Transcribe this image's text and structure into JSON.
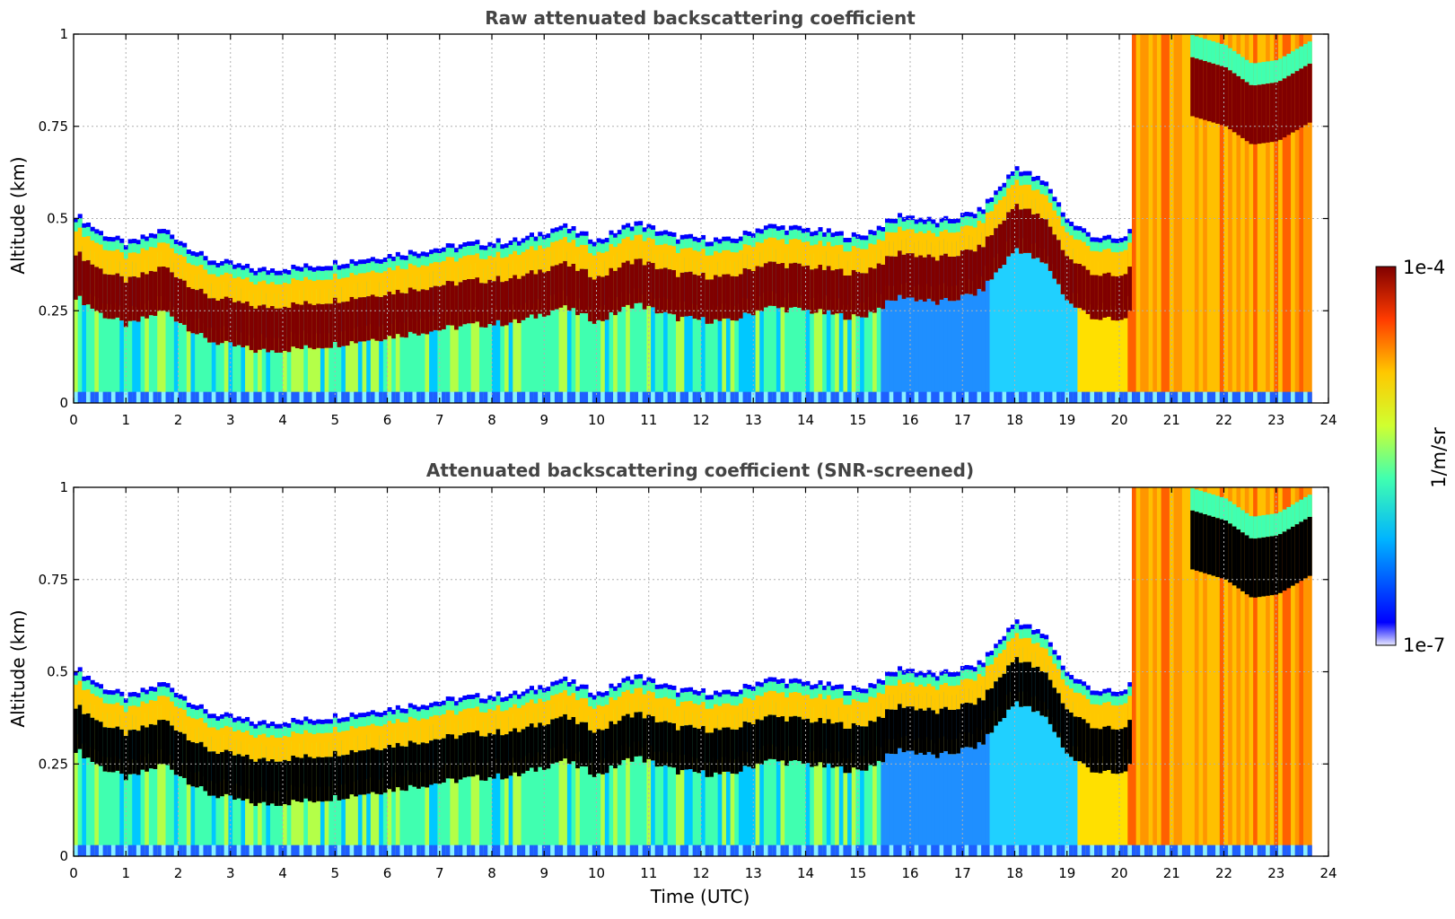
{
  "chart_data": [
    {
      "type": "heatmap",
      "title": "Raw attenuated backscattering coefficient",
      "xlabel": "",
      "ylabel": "Altitude (km)",
      "xlim": [
        0,
        24
      ],
      "ylim": [
        0,
        1
      ],
      "xticks": [
        "0",
        "1",
        "2",
        "3",
        "4",
        "5",
        "6",
        "7",
        "8",
        "9",
        "10",
        "11",
        "12",
        "13",
        "14",
        "15",
        "16",
        "17",
        "18",
        "19",
        "20",
        "21",
        "22",
        "23",
        "24"
      ],
      "yticks": [
        "0",
        "0.25",
        "0.5",
        "0.75",
        "1"
      ],
      "grid": true,
      "saturated_color": "#800000",
      "layer_top": [
        [
          0,
          0.5
        ],
        [
          0.5,
          0.45
        ],
        [
          1,
          0.42
        ],
        [
          1.7,
          0.46
        ],
        [
          2.5,
          0.38
        ],
        [
          3.5,
          0.35
        ],
        [
          4.5,
          0.36
        ],
        [
          5.5,
          0.38
        ],
        [
          6.5,
          0.4
        ],
        [
          7.5,
          0.42
        ],
        [
          8.5,
          0.43
        ],
        [
          9.3,
          0.47
        ],
        [
          10,
          0.43
        ],
        [
          10.7,
          0.48
        ],
        [
          11.5,
          0.44
        ],
        [
          12.5,
          0.43
        ],
        [
          13.2,
          0.47
        ],
        [
          14,
          0.46
        ],
        [
          15,
          0.44
        ],
        [
          15.8,
          0.5
        ],
        [
          16.5,
          0.48
        ],
        [
          17.3,
          0.51
        ],
        [
          18,
          0.63
        ],
        [
          18.6,
          0.58
        ],
        [
          19,
          0.48
        ],
        [
          19.5,
          0.44
        ],
        [
          20,
          0.43
        ],
        [
          20.3,
          0.48
        ]
      ],
      "upper_layer_top": [
        [
          21.3,
          1.0
        ],
        [
          22,
          0.97
        ],
        [
          22.5,
          0.92
        ],
        [
          23,
          0.93
        ],
        [
          23.6,
          0.98
        ]
      ]
    },
    {
      "type": "heatmap",
      "title": "Attenuated backscattering coefficient (SNR-screened)",
      "xlabel": "Time (UTC)",
      "ylabel": "Altitude (km)",
      "xlim": [
        0,
        24
      ],
      "ylim": [
        0,
        1
      ],
      "xticks": [
        "0",
        "1",
        "2",
        "3",
        "4",
        "5",
        "6",
        "7",
        "8",
        "9",
        "10",
        "11",
        "12",
        "13",
        "14",
        "15",
        "16",
        "17",
        "18",
        "19",
        "20",
        "21",
        "22",
        "23",
        "24"
      ],
      "yticks": [
        "0",
        "0.25",
        "0.5",
        "0.75",
        "1"
      ],
      "grid": true,
      "saturated_color": "#000000",
      "layer_top": [
        [
          0,
          0.5
        ],
        [
          0.5,
          0.45
        ],
        [
          1,
          0.42
        ],
        [
          1.7,
          0.46
        ],
        [
          2.5,
          0.38
        ],
        [
          3.5,
          0.35
        ],
        [
          4.5,
          0.36
        ],
        [
          5.5,
          0.38
        ],
        [
          6.5,
          0.4
        ],
        [
          7.5,
          0.42
        ],
        [
          8.5,
          0.43
        ],
        [
          9.3,
          0.47
        ],
        [
          10,
          0.43
        ],
        [
          10.7,
          0.48
        ],
        [
          11.5,
          0.44
        ],
        [
          12.5,
          0.43
        ],
        [
          13.2,
          0.47
        ],
        [
          14,
          0.46
        ],
        [
          15,
          0.44
        ],
        [
          15.8,
          0.5
        ],
        [
          16.5,
          0.48
        ],
        [
          17.3,
          0.51
        ],
        [
          18,
          0.63
        ],
        [
          18.6,
          0.58
        ],
        [
          19,
          0.48
        ],
        [
          19.5,
          0.44
        ],
        [
          20,
          0.43
        ],
        [
          20.3,
          0.48
        ]
      ],
      "upper_layer_top": [
        [
          21.3,
          1.0
        ],
        [
          22,
          0.97
        ],
        [
          22.5,
          0.92
        ],
        [
          23,
          0.93
        ],
        [
          23.6,
          0.98
        ]
      ]
    }
  ],
  "colorbar": {
    "label": "1/m/sr",
    "max_label": "1e-4",
    "min_label": "1e-7",
    "colors": [
      "#e8e8ff",
      "#0000ff",
      "#00b4ff",
      "#40ffb0",
      "#d0ff30",
      "#ffc800",
      "#ff3c00",
      "#800000"
    ]
  }
}
